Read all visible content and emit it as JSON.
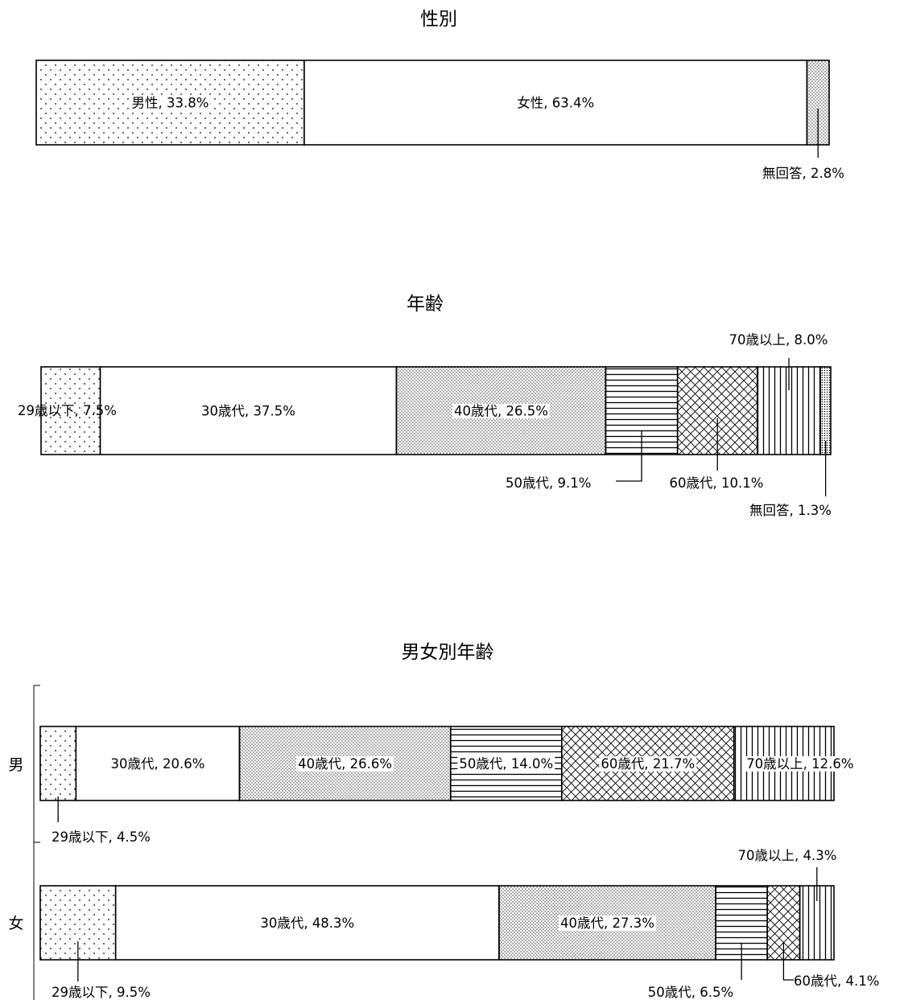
{
  "chart_data": [
    {
      "type": "bar",
      "orientation": "horizontal-stacked-100",
      "title": "性別",
      "unit": "%",
      "segments": [
        {
          "name": "男性",
          "value": 33.8,
          "label": "男性, 33.8%",
          "pattern": "dots-sparse"
        },
        {
          "name": "女性",
          "value": 63.4,
          "label": "女性, 63.4%",
          "pattern": "none"
        },
        {
          "name": "無回答",
          "value": 2.8,
          "label": "無回答, 2.8%",
          "pattern": "dots-dense"
        }
      ]
    },
    {
      "type": "bar",
      "orientation": "horizontal-stacked-100",
      "title": "年齢",
      "unit": "%",
      "segments": [
        {
          "name": "29歳以下",
          "value": 7.5,
          "label": "29歳以下, 7.5%",
          "pattern": "dots-sparse"
        },
        {
          "name": "30歳代",
          "value": 37.5,
          "label": "30歳代, 37.5%",
          "pattern": "none"
        },
        {
          "name": "40歳代",
          "value": 26.5,
          "label": "40歳代, 26.5%",
          "pattern": "dots-dense"
        },
        {
          "name": "50歳代",
          "value": 9.1,
          "label": "50歳代, 9.1%",
          "pattern": "horizontal-lines"
        },
        {
          "name": "60歳代",
          "value": 10.1,
          "label": "60歳代, 10.1%",
          "pattern": "crosshatch"
        },
        {
          "name": "70歳以上",
          "value": 8.0,
          "label": "70歳以上, 8.0%",
          "pattern": "vertical-lines"
        },
        {
          "name": "無回答",
          "value": 1.3,
          "label": "無回答, 1.3%",
          "pattern": "dots-fine"
        }
      ]
    },
    {
      "type": "bar",
      "orientation": "horizontal-stacked-100",
      "title": "男女別年齢",
      "unit": "%",
      "categories": [
        "男",
        "女"
      ],
      "series_names": [
        "29歳以下",
        "30歳代",
        "40歳代",
        "50歳代",
        "60歳代",
        "70歳以上"
      ],
      "patterns": [
        "dots-sparse",
        "none",
        "dots-dense",
        "horizontal-lines",
        "crosshatch",
        "vertical-lines"
      ],
      "rows": [
        {
          "category": "男",
          "values": [
            4.5,
            20.6,
            26.6,
            14.0,
            21.7,
            12.6
          ],
          "labels": [
            "29歳以下, 4.5%",
            "30歳代, 20.6%",
            "40歳代, 26.6%",
            "50歳代, 14.0%",
            "60歳代, 21.7%",
            "70歳以上, 12.6%"
          ]
        },
        {
          "category": "女",
          "values": [
            9.5,
            48.3,
            27.3,
            6.5,
            4.1,
            4.3
          ],
          "labels": [
            "29歳以下, 9.5%",
            "30歳代, 48.3%",
            "40歳代, 27.3%",
            "50歳代, 6.5%",
            "60歳代, 4.1%",
            "70歳以上, 4.3%"
          ]
        }
      ]
    }
  ]
}
